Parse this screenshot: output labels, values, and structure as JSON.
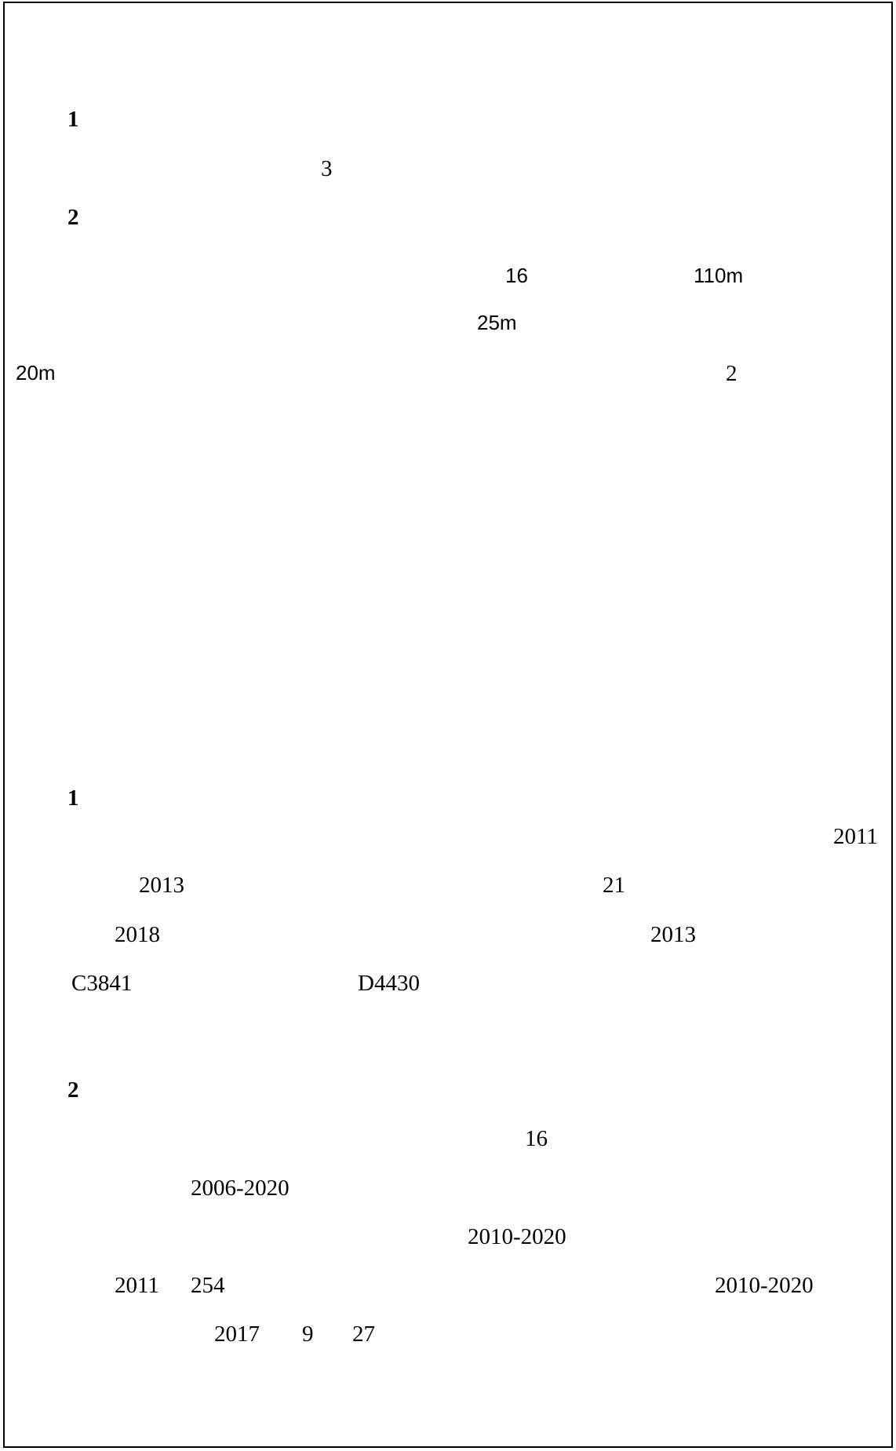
{
  "section_a": {
    "heading_1": "1",
    "line_1": "3",
    "heading_2": "2",
    "line_2a": "16",
    "line_2b": "110m",
    "line_3": "25m",
    "line_4a": "20m",
    "line_4b": "2"
  },
  "section_b": {
    "heading_1": "1",
    "p1": {
      "a": "2011",
      "b": "2013",
      "c": "21",
      "d": "2018",
      "e": "2013",
      "f": "C3841",
      "g": "D4430"
    },
    "heading_2": "2",
    "p2": {
      "a": "16",
      "b": "2006-2020",
      "c": "2010-2020",
      "d": "2011",
      "e": "254",
      "f": "2010-2020",
      "g": "2017",
      "h": "9",
      "i": "27"
    }
  }
}
